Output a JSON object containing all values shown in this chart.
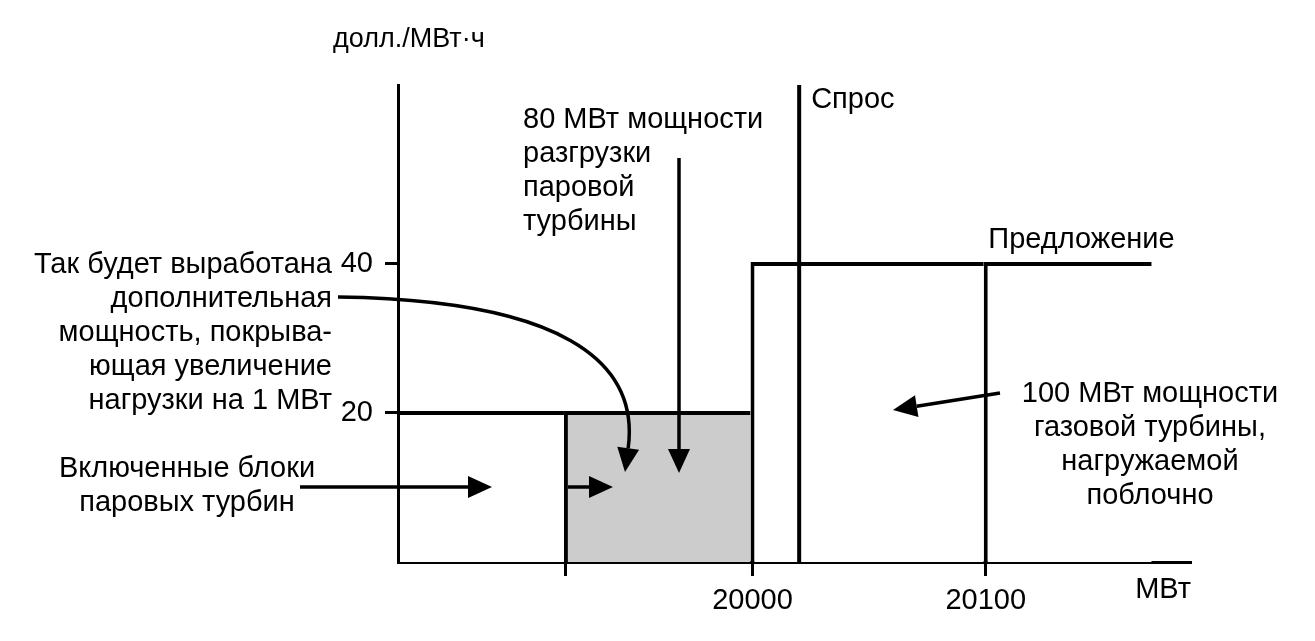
{
  "chart_data": {
    "type": "histogram",
    "xlabel": "МВт",
    "ylabel": "долл./МВт·ч",
    "xlim": [
      19848,
      20188
    ],
    "ylim": [
      0,
      64
    ],
    "xticks": [
      {
        "value": 19920,
        "label": null
      },
      20000,
      20100
    ],
    "yticks": [
      20,
      40
    ],
    "bins": [
      19848,
      19920,
      20000,
      20100,
      20172
    ],
    "series": [
      {
        "name": "Предложение",
        "color": "#000000",
        "colors": [
          "#ffffff",
          "#cccccc",
          "#ffffff",
          "#ffffff"
        ],
        "values": [
          20,
          20,
          40,
          40
        ]
      }
    ],
    "ref_lines": [
      {
        "axis": "x",
        "value": 20020,
        "label": "Спрос",
        "color": "#000000"
      }
    ],
    "annotations": [
      "80 МВт мощности\nразгрузки\nпаровой\nтурбины",
      "Так будет выработана\nдополнительная\nмощность, покрыва-\nющая увеличение\nнагрузки на 1 МВт",
      "Включенные блоки\nпаровых турбин",
      "100 МВт мощности\nгазовой турбины,\nнагружаемой\nпоблочно"
    ]
  }
}
